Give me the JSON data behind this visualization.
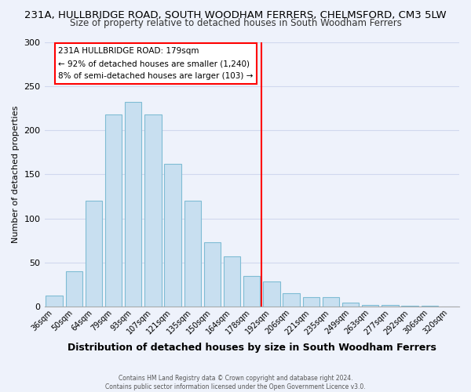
{
  "title": "231A, HULLBRIDGE ROAD, SOUTH WOODHAM FERRERS, CHELMSFORD, CM3 5LW",
  "subtitle": "Size of property relative to detached houses in South Woodham Ferrers",
  "xlabel": "Distribution of detached houses by size in South Woodham Ferrers",
  "ylabel": "Number of detached properties",
  "bar_labels": [
    "36sqm",
    "50sqm",
    "64sqm",
    "79sqm",
    "93sqm",
    "107sqm",
    "121sqm",
    "135sqm",
    "150sqm",
    "164sqm",
    "178sqm",
    "192sqm",
    "206sqm",
    "221sqm",
    "235sqm",
    "249sqm",
    "263sqm",
    "277sqm",
    "292sqm",
    "306sqm",
    "320sqm"
  ],
  "bar_heights": [
    12,
    40,
    120,
    218,
    232,
    218,
    162,
    120,
    73,
    57,
    35,
    28,
    15,
    11,
    11,
    4,
    2,
    2,
    1,
    1,
    0
  ],
  "bar_color": "#c8dff0",
  "bar_edge_color": "#7fbcd4",
  "vline_color": "red",
  "annotation_title": "231A HULLBRIDGE ROAD: 179sqm",
  "annotation_line1": "← 92% of detached houses are smaller (1,240)",
  "annotation_line2": "8% of semi-detached houses are larger (103) →",
  "ylim": [
    0,
    300
  ],
  "footnote1": "Contains HM Land Registry data © Crown copyright and database right 2024.",
  "footnote2": "Contains public sector information licensed under the Open Government Licence v3.0.",
  "bg_color": "#eef2fb",
  "title_fontsize": 9.5,
  "subtitle_fontsize": 8.5,
  "grid_color": "#d0d8ee",
  "vline_bar_index": 10
}
